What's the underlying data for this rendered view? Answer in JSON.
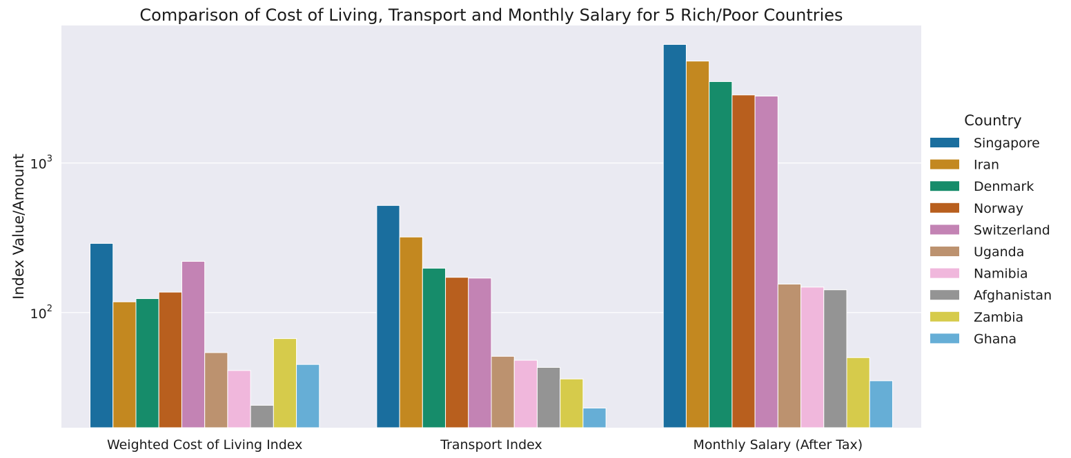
{
  "chart_data": {
    "type": "bar",
    "title": "Comparison of Cost of Living, Transport and Monthly Salary for 5 Rich/Poor Countries",
    "xlabel": "",
    "ylabel": "Index Value/Amount",
    "yscale": "log",
    "ylim": [
      17,
      8300
    ],
    "yticks": [
      {
        "value": 100,
        "base": "10",
        "exp": "2"
      },
      {
        "value": 1000,
        "base": "10",
        "exp": "3"
      }
    ],
    "grid": true,
    "legend_title": "Country",
    "legend_position": "right",
    "categories": [
      "Weighted Cost of Living Index",
      "Transport Index",
      "Monthly Salary (After Tax)"
    ],
    "series": [
      {
        "name": "Singapore",
        "color": "#1a6e9e",
        "values": [
          290,
          520,
          6200
        ]
      },
      {
        "name": "Iran",
        "color": "#c38820",
        "values": [
          118,
          320,
          4800
        ]
      },
      {
        "name": "Denmark",
        "color": "#168c6a",
        "values": [
          124,
          198,
          3500
        ]
      },
      {
        "name": "Norway",
        "color": "#b85f1e",
        "values": [
          137,
          172,
          2850
        ]
      },
      {
        "name": "Switzerland",
        "color": "#c383b4",
        "values": [
          220,
          170,
          2800
        ]
      },
      {
        "name": "Uganda",
        "color": "#bc926f",
        "values": [
          54,
          51,
          155
        ]
      },
      {
        "name": "Namibia",
        "color": "#f0b7dc",
        "values": [
          41,
          48,
          148
        ]
      },
      {
        "name": "Afghanistan",
        "color": "#949494",
        "values": [
          24,
          43,
          142
        ]
      },
      {
        "name": "Zambia",
        "color": "#d6cb4b",
        "values": [
          67,
          36,
          50
        ]
      },
      {
        "name": "Ghana",
        "color": "#66aed6",
        "values": [
          45,
          23,
          35
        ]
      }
    ]
  }
}
